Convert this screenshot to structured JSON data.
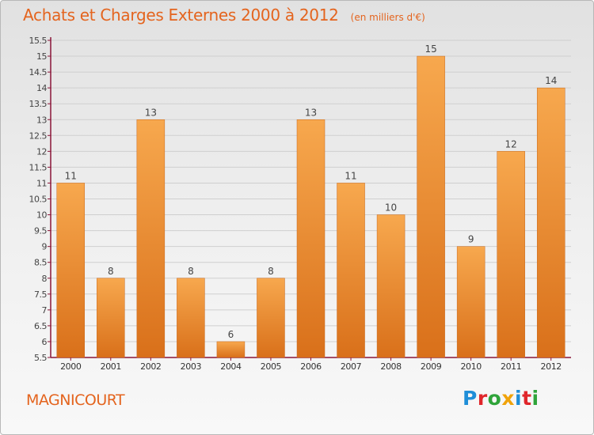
{
  "header": {
    "title": "Achats et Charges Externes 2000 à 2012",
    "unit": "(en milliers d'€)"
  },
  "footer": {
    "town": "MAGNICOURT",
    "brand": "Proxiti",
    "brand_colors": [
      "#1f8ed8",
      "#e0262b",
      "#2fa43a",
      "#f0a30a",
      "#1f8ed8",
      "#e0262b",
      "#2fa43a"
    ]
  },
  "colors": {
    "title": "#e4641e",
    "bar_top": "#f7a84e",
    "bar_bottom": "#d9701a",
    "grid": "#cfcfcf",
    "axis": "#8a1538"
  },
  "chart_data": {
    "type": "bar",
    "title": "Achats et Charges Externes 2000 à 2012",
    "categories": [
      "2000",
      "2001",
      "2002",
      "2003",
      "2004",
      "2005",
      "2006",
      "2007",
      "2008",
      "2009",
      "2010",
      "2011",
      "2012"
    ],
    "values": [
      11,
      8,
      13,
      8,
      6,
      8,
      13,
      11,
      10,
      15,
      9,
      12,
      14
    ],
    "ylim": [
      5.5,
      15.5
    ],
    "yticks": [
      "5.5",
      "6",
      "6.5",
      "7",
      "7.5",
      "8",
      "8.5",
      "9",
      "9.5",
      "10",
      "10.5",
      "11",
      "11.5",
      "12",
      "12.5",
      "13",
      "13.5",
      "14",
      "14.5",
      "15",
      "15.5"
    ],
    "xlabel": "",
    "ylabel": "",
    "grid": true
  }
}
